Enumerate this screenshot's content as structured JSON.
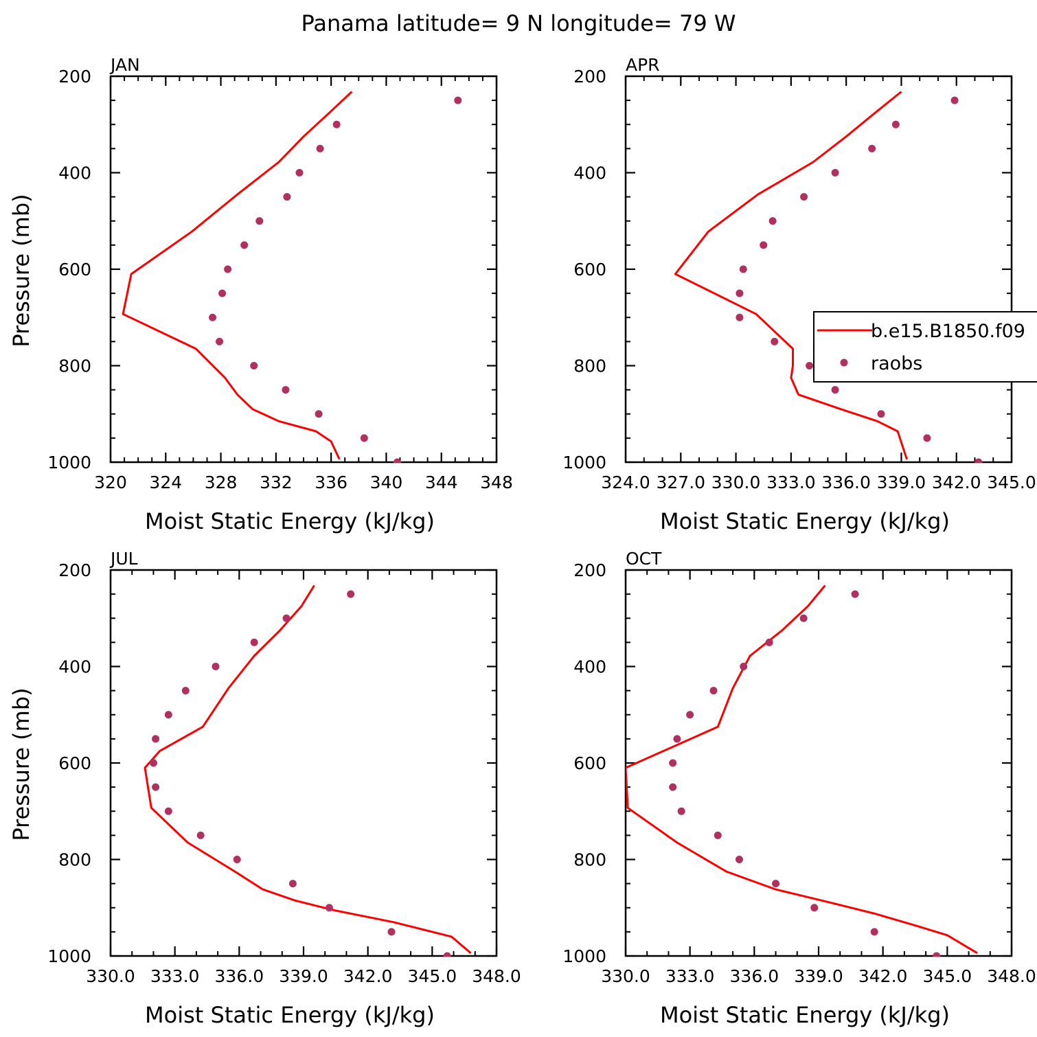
{
  "figure": {
    "title": "Panama  latitude= 9 N longitude= 79 W"
  },
  "colors": {
    "model": "#ff0000",
    "raobs": "#b03060",
    "axis": "#000000"
  },
  "chart_data": [
    {
      "type": "line",
      "panel_label": "JAN",
      "xlabel": "Moist Static Energy (kJ/kg)",
      "ylabel": "Pressure (mb)",
      "xlim": [
        320,
        348
      ],
      "ylim": [
        1000,
        200
      ],
      "y_inverted": true,
      "x_ticks": [
        320,
        324,
        328,
        332,
        336,
        340,
        344,
        348
      ],
      "x_tick_labels": [
        "320",
        "324",
        "328",
        "332",
        "336",
        "340",
        "344",
        "348"
      ],
      "y_ticks": [
        200,
        400,
        600,
        800,
        1000
      ],
      "y_tick_labels": [
        "200",
        "400",
        "600",
        "800",
        "1000"
      ],
      "legend": null,
      "series": [
        {
          "style": "line",
          "x": [
            337.5,
            335.9,
            334.0,
            332.2,
            329.2,
            325.9,
            321.5,
            320.9,
            326.2,
            328.3,
            329.2,
            330.3,
            332.2,
            334.9,
            336.0,
            336.6
          ],
          "y": [
            232,
            275,
            325,
            378,
            445,
            522,
            610,
            693,
            765,
            825,
            860,
            890,
            915,
            936,
            957,
            994
          ]
        },
        {
          "style": "scatter",
          "x": [
            345.2,
            336.4,
            335.2,
            333.7,
            332.8,
            330.8,
            329.7,
            328.5,
            328.1,
            327.4,
            327.9,
            330.4,
            332.7,
            335.1,
            338.4,
            340.8
          ],
          "y": [
            250,
            300,
            350,
            400,
            450,
            500,
            550,
            600,
            650,
            700,
            750,
            800,
            850,
            900,
            950,
            1000
          ]
        }
      ]
    },
    {
      "type": "line",
      "panel_label": "APR",
      "xlabel": "Moist Static Energy (kJ/kg)",
      "ylabel": "",
      "xlim": [
        324.0,
        345.0
      ],
      "ylim": [
        1000,
        200
      ],
      "y_inverted": true,
      "x_ticks": [
        324,
        327,
        330,
        333,
        336,
        339,
        342,
        345
      ],
      "x_tick_labels": [
        "324.0",
        "327.0",
        "330.0",
        "333.0",
        "336.0",
        "339.0",
        "342.0",
        "345.0"
      ],
      "y_ticks": [
        200,
        400,
        600,
        800,
        1000
      ],
      "y_tick_labels": [
        "200",
        "400",
        "600",
        "800",
        "1000"
      ],
      "legend": {
        "placement": "right",
        "entries": [
          "b.e15.B1850.f09",
          "raobs"
        ]
      },
      "series": [
        {
          "name": "b.e15.B1850.f09",
          "style": "line",
          "x": [
            339.0,
            337.6,
            336.0,
            334.2,
            331.2,
            328.5,
            326.7,
            331.1,
            333.1,
            333.1,
            333.0,
            333.4,
            335.7,
            337.7,
            338.8,
            339.3
          ],
          "y": [
            232,
            275,
            325,
            378,
            445,
            522,
            610,
            693,
            765,
            800,
            825,
            860,
            890,
            915,
            936,
            994
          ]
        },
        {
          "name": "raobs",
          "style": "scatter",
          "x": [
            341.9,
            338.7,
            337.4,
            335.4,
            333.7,
            332.0,
            331.5,
            330.4,
            330.2,
            330.2,
            332.1,
            334.0,
            335.4,
            337.9,
            340.4,
            343.2
          ],
          "y": [
            250,
            300,
            350,
            400,
            450,
            500,
            550,
            600,
            650,
            700,
            750,
            800,
            850,
            900,
            950,
            1000
          ]
        }
      ]
    },
    {
      "type": "line",
      "panel_label": "JUL",
      "xlabel": "Moist Static Energy (kJ/kg)",
      "ylabel": "Pressure (mb)",
      "xlim": [
        330.0,
        348.0
      ],
      "ylim": [
        1000,
        200
      ],
      "y_inverted": true,
      "x_ticks": [
        330,
        333,
        336,
        339,
        342,
        345,
        348
      ],
      "x_tick_labels": [
        "330.0",
        "333.0",
        "336.0",
        "339.0",
        "342.0",
        "345.0",
        "348.0"
      ],
      "y_ticks": [
        200,
        400,
        600,
        800,
        1000
      ],
      "y_tick_labels": [
        "200",
        "400",
        "600",
        "800",
        "1000"
      ],
      "legend": null,
      "series": [
        {
          "style": "line",
          "x": [
            339.5,
            338.9,
            337.9,
            336.7,
            335.5,
            334.3,
            332.3,
            331.6,
            331.9,
            333.6,
            335.8,
            337.1,
            338.6,
            340.4,
            343.2,
            345.9,
            346.8
          ],
          "y": [
            232,
            275,
            325,
            378,
            445,
            525,
            575,
            610,
            693,
            765,
            825,
            862,
            885,
            905,
            930,
            960,
            994
          ]
        },
        {
          "style": "scatter",
          "x": [
            341.2,
            338.2,
            336.7,
            334.9,
            333.5,
            332.7,
            332.1,
            332.0,
            332.1,
            332.7,
            334.2,
            335.9,
            338.5,
            340.2,
            343.1,
            345.7
          ],
          "y": [
            250,
            300,
            350,
            400,
            450,
            500,
            550,
            600,
            650,
            700,
            750,
            800,
            850,
            900,
            950,
            1000
          ]
        }
      ]
    },
    {
      "type": "line",
      "panel_label": "OCT",
      "xlabel": "Moist Static Energy (kJ/kg)",
      "ylabel": "",
      "xlim": [
        330.0,
        348.0
      ],
      "ylim": [
        1000,
        200
      ],
      "y_inverted": true,
      "x_ticks": [
        330,
        333,
        336,
        339,
        342,
        345,
        348
      ],
      "x_tick_labels": [
        "330.0",
        "333.0",
        "336.0",
        "339.0",
        "342.0",
        "345.0",
        "348.0"
      ],
      "y_ticks": [
        200,
        400,
        600,
        800,
        1000
      ],
      "y_tick_labels": [
        "200",
        "400",
        "600",
        "800",
        "1000"
      ],
      "legend": null,
      "series": [
        {
          "style": "line",
          "x": [
            339.3,
            338.5,
            337.3,
            335.8,
            335.0,
            334.3,
            330.0,
            330.1,
            332.4,
            334.7,
            337.0,
            339.6,
            341.6,
            343.6,
            345.0,
            346.4
          ],
          "y": [
            232,
            275,
            325,
            378,
            445,
            525,
            610,
            693,
            765,
            825,
            862,
            890,
            912,
            938,
            957,
            994
          ]
        },
        {
          "style": "scatter",
          "x": [
            340.7,
            338.3,
            336.7,
            335.5,
            334.1,
            333.0,
            332.4,
            332.2,
            332.2,
            332.6,
            334.3,
            335.3,
            337.0,
            338.8,
            341.6,
            344.5
          ],
          "y": [
            250,
            300,
            350,
            400,
            450,
            500,
            550,
            600,
            650,
            700,
            750,
            800,
            850,
            900,
            950,
            1000
          ]
        }
      ]
    }
  ]
}
